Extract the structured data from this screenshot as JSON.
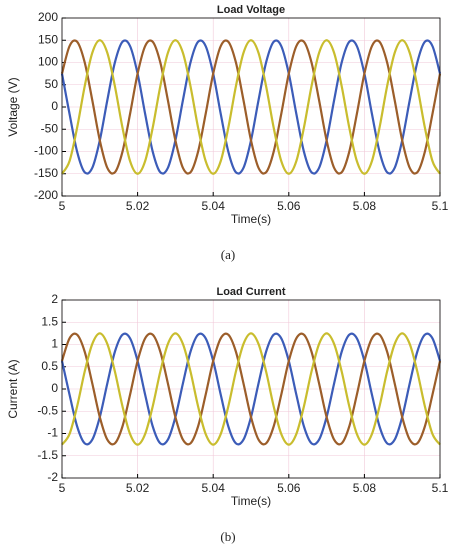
{
  "chart_data": [
    {
      "type": "line",
      "title": "Load Voltage",
      "xlabel": "Time(s)",
      "ylabel": "Voltage (V)",
      "caption": "(a)",
      "grid": true,
      "xlim": [
        5,
        5.1
      ],
      "xticks": [
        5,
        5.02,
        5.04,
        5.06,
        5.08,
        5.1
      ],
      "ylim": [
        -200,
        200
      ],
      "yticks": [
        -200,
        -150,
        -100,
        -50,
        0,
        50,
        100,
        150,
        200
      ],
      "x": [
        5,
        5.002,
        5.004,
        5.006,
        5.008,
        5.01,
        5.012,
        5.014,
        5.016,
        5.018,
        5.02,
        5.022,
        5.024,
        5.026,
        5.028,
        5.03,
        5.032,
        5.034,
        5.036,
        5.038,
        5.04,
        5.042,
        5.044,
        5.046,
        5.048,
        5.05,
        5.052,
        5.054,
        5.056,
        5.058,
        5.06,
        5.062,
        5.064,
        5.066,
        5.068,
        5.07,
        5.072,
        5.074,
        5.076,
        5.078,
        5.08,
        5.082,
        5.084,
        5.086,
        5.088,
        5.09,
        5.092,
        5.094,
        5.096,
        5.098,
        5.1
      ],
      "series": [
        {
          "color": "#3c5cb8",
          "values": [
            75,
            -15.7,
            -100.4,
            -146.7,
            -137,
            -75,
            15.7,
            100.4,
            146.7,
            137,
            75,
            -15.7,
            -100.4,
            -146.7,
            -137,
            -75,
            15.7,
            100.4,
            146.7,
            137,
            75,
            -15.7,
            -100.4,
            -146.7,
            -137,
            -75,
            15.7,
            100.4,
            146.7,
            137,
            75,
            -15.7,
            -100.4,
            -146.7,
            -137,
            -75,
            15.7,
            100.4,
            146.7,
            137,
            75,
            -15.7,
            -100.4,
            -146.7,
            -137,
            -75,
            15.7,
            100.4,
            146.7,
            137,
            75
          ]
        },
        {
          "color": "#9c5e2a",
          "values": [
            75,
            137,
            146.7,
            100.4,
            15.7,
            -75,
            -137,
            -146.7,
            -100.4,
            -15.7,
            75,
            137,
            146.7,
            100.4,
            15.7,
            -75,
            -137,
            -146.7,
            -100.4,
            -15.7,
            75,
            137,
            146.7,
            100.4,
            15.7,
            -75,
            -137,
            -146.7,
            -100.4,
            -15.7,
            75,
            137,
            146.7,
            100.4,
            15.7,
            -75,
            -137,
            -146.7,
            -100.4,
            -15.7,
            75,
            137,
            146.7,
            100.4,
            15.7,
            -75,
            -137,
            -146.7,
            -100.4,
            -15.7,
            75
          ]
        },
        {
          "color": "#c9bd2e",
          "values": [
            -150,
            -121.4,
            -46.4,
            46.4,
            121.4,
            150,
            121.4,
            46.4,
            -46.4,
            -121.4,
            -150,
            -121.4,
            -46.4,
            46.4,
            121.4,
            150,
            121.4,
            46.4,
            -46.4,
            -121.4,
            -150,
            -121.4,
            -46.4,
            46.4,
            121.4,
            150,
            121.4,
            46.4,
            -46.4,
            -121.4,
            -150,
            -121.4,
            -46.4,
            46.4,
            121.4,
            150,
            121.4,
            46.4,
            -46.4,
            -121.4,
            -150,
            -121.4,
            -46.4,
            46.4,
            121.4,
            150,
            121.4,
            46.4,
            -46.4,
            -121.4,
            -150
          ]
        }
      ]
    },
    {
      "type": "line",
      "title": "Load Current",
      "xlabel": "Time(s)",
      "ylabel": "Current (A)",
      "caption": "(b)",
      "grid": true,
      "xlim": [
        5,
        5.1
      ],
      "xticks": [
        5,
        5.02,
        5.04,
        5.06,
        5.08,
        5.1
      ],
      "ylim": [
        -2,
        2
      ],
      "yticks": [
        -2,
        -1.5,
        -1,
        -0.5,
        0,
        0.5,
        1,
        1.5,
        2
      ],
      "x": [
        5,
        5.002,
        5.004,
        5.006,
        5.008,
        5.01,
        5.012,
        5.014,
        5.016,
        5.018,
        5.02,
        5.022,
        5.024,
        5.026,
        5.028,
        5.03,
        5.032,
        5.034,
        5.036,
        5.038,
        5.04,
        5.042,
        5.044,
        5.046,
        5.048,
        5.05,
        5.052,
        5.054,
        5.056,
        5.058,
        5.06,
        5.062,
        5.064,
        5.066,
        5.068,
        5.07,
        5.072,
        5.074,
        5.076,
        5.078,
        5.08,
        5.082,
        5.084,
        5.086,
        5.088,
        5.09,
        5.092,
        5.094,
        5.096,
        5.098,
        5.1
      ],
      "series": [
        {
          "color": "#3c5cb8",
          "values": [
            0.63,
            -0.13,
            -0.84,
            -1.22,
            -1.14,
            -0.63,
            0.13,
            0.84,
            1.22,
            1.14,
            0.63,
            -0.13,
            -0.84,
            -1.22,
            -1.14,
            -0.63,
            0.13,
            0.84,
            1.22,
            1.14,
            0.63,
            -0.13,
            -0.84,
            -1.22,
            -1.14,
            -0.63,
            0.13,
            0.84,
            1.22,
            1.14,
            0.63,
            -0.13,
            -0.84,
            -1.22,
            -1.14,
            -0.63,
            0.13,
            0.84,
            1.22,
            1.14,
            0.63,
            -0.13,
            -0.84,
            -1.22,
            -1.14,
            -0.63,
            0.13,
            0.84,
            1.22,
            1.14,
            0.63
          ]
        },
        {
          "color": "#9c5e2a",
          "values": [
            0.63,
            1.14,
            1.22,
            0.84,
            0.13,
            -0.63,
            -1.14,
            -1.22,
            -0.84,
            -0.13,
            0.63,
            1.14,
            1.22,
            0.84,
            0.13,
            -0.63,
            -1.14,
            -1.22,
            -0.84,
            -0.13,
            0.63,
            1.14,
            1.22,
            0.84,
            0.13,
            -0.63,
            -1.14,
            -1.22,
            -0.84,
            -0.13,
            0.63,
            1.14,
            1.22,
            0.84,
            0.13,
            -0.63,
            -1.14,
            -1.22,
            -0.84,
            -0.13,
            0.63,
            1.14,
            1.22,
            0.84,
            0.13,
            -0.63,
            -1.14,
            -1.22,
            -0.84,
            -0.13,
            0.63
          ]
        },
        {
          "color": "#c9bd2e",
          "values": [
            -1.25,
            -1.01,
            -0.39,
            0.39,
            1.01,
            1.25,
            1.01,
            0.39,
            -0.39,
            -1.01,
            -1.25,
            -1.01,
            -0.39,
            0.39,
            1.01,
            1.25,
            1.01,
            0.39,
            -0.39,
            -1.01,
            -1.25,
            -1.01,
            -0.39,
            0.39,
            1.01,
            1.25,
            1.01,
            0.39,
            -0.39,
            -1.01,
            -1.25,
            -1.01,
            -0.39,
            0.39,
            1.01,
            1.25,
            1.01,
            0.39,
            -0.39,
            -1.01,
            -1.25,
            -1.01,
            -0.39,
            0.39,
            1.01,
            1.25,
            1.01,
            0.39,
            -0.39,
            -1.01,
            -1.25
          ]
        }
      ]
    }
  ]
}
